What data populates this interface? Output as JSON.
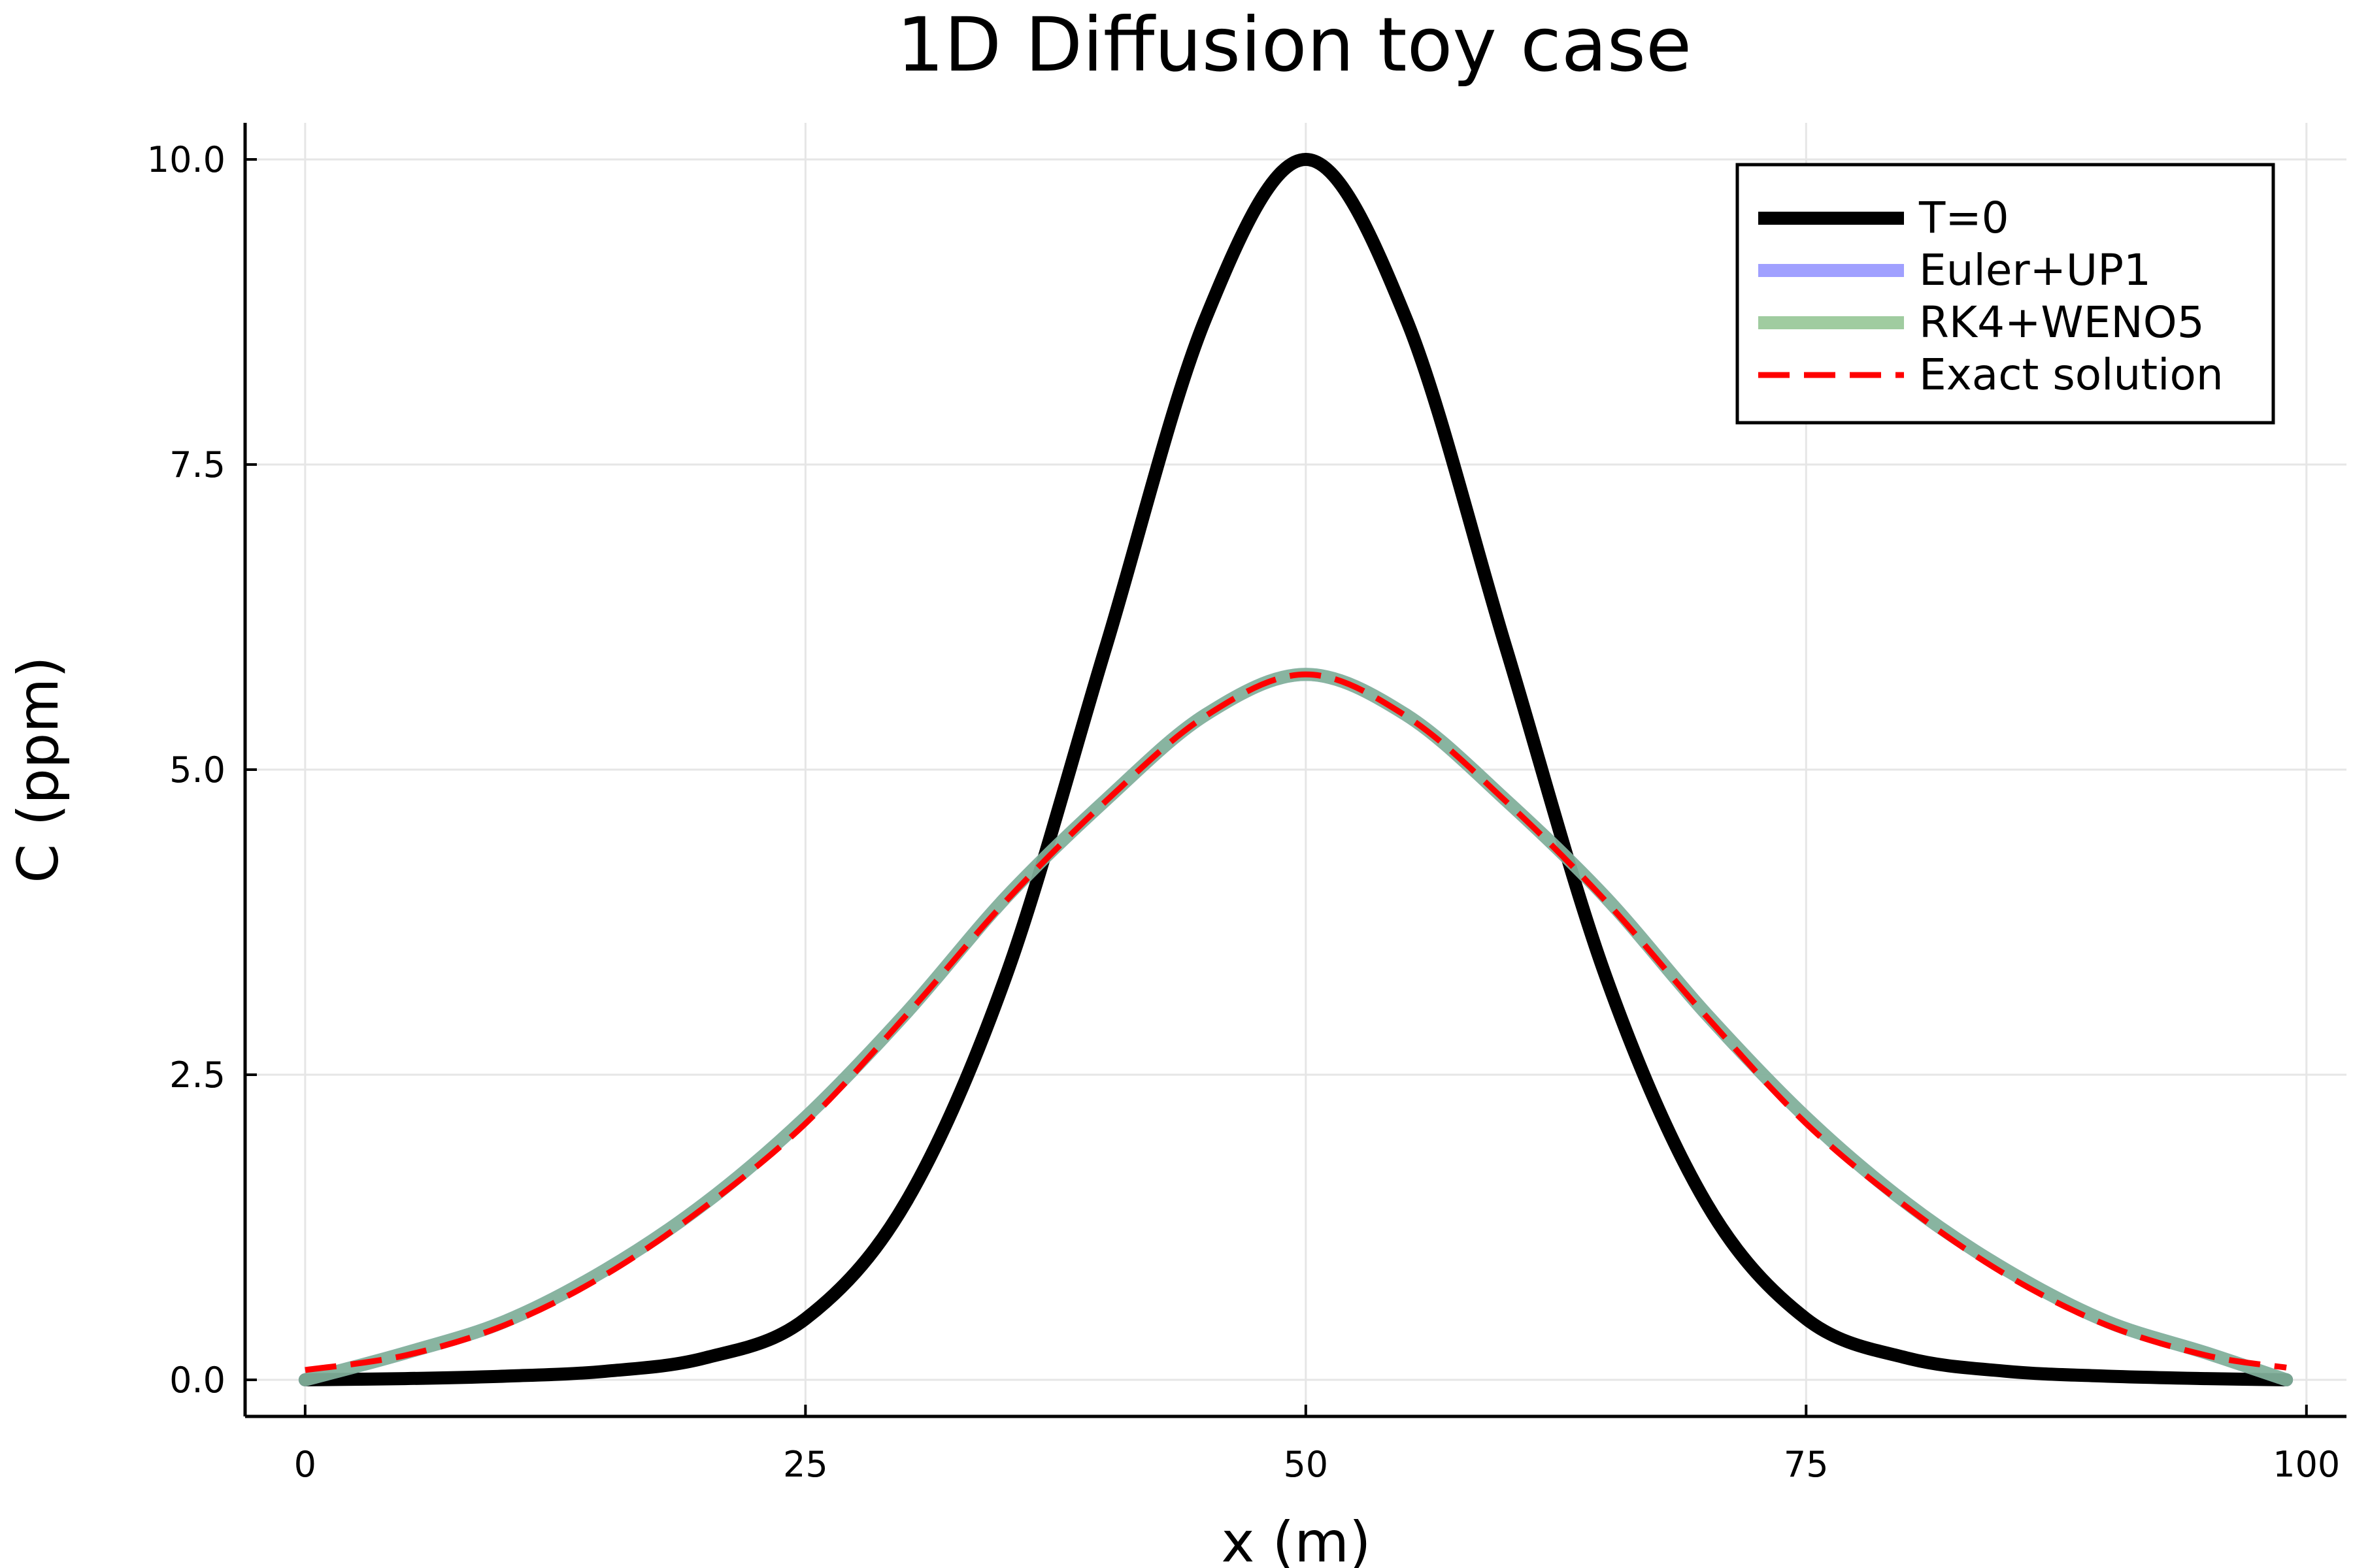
{
  "chart_data": {
    "type": "line",
    "title": "1D Diffusion toy case",
    "xlabel": "x (m)",
    "ylabel": "C (ppm)",
    "xlim": [
      -3,
      102
    ],
    "ylim": [
      -0.3,
      10.3
    ],
    "xticks": [
      0,
      25,
      50,
      75,
      100
    ],
    "xtick_labels": [
      "0",
      "25",
      "50",
      "75",
      "100"
    ],
    "yticks": [
      0,
      2.5,
      5,
      7.5,
      10
    ],
    "ytick_labels": [
      "0.0",
      "2.5",
      "5.0",
      "7.5",
      "10.0"
    ],
    "grid": true,
    "legend_position": "top-right",
    "x": [
      0,
      5,
      10,
      15,
      20,
      25,
      30,
      35,
      40,
      45,
      50,
      55,
      60,
      65,
      70,
      75,
      80,
      85,
      90,
      95,
      99
    ],
    "series": [
      {
        "name": "T=0",
        "color": "#000000",
        "style": "solid",
        "values": [
          0.0,
          0.01,
          0.03,
          0.07,
          0.18,
          0.5,
          1.45,
          3.3,
          6.0,
          8.7,
          10.0,
          8.7,
          6.0,
          3.3,
          1.45,
          0.5,
          0.18,
          0.07,
          0.03,
          0.01,
          0.0
        ]
      },
      {
        "name": "Euler+UP1",
        "color": "#8080ff",
        "style": "solid",
        "values": [
          0.0,
          0.22,
          0.48,
          0.9,
          1.45,
          2.15,
          3.0,
          3.95,
          4.75,
          5.45,
          5.78,
          5.45,
          4.75,
          3.95,
          3.0,
          2.15,
          1.45,
          0.9,
          0.48,
          0.22,
          0.0
        ]
      },
      {
        "name": "RK4+WENO5",
        "color": "#80bb80",
        "style": "solid",
        "values": [
          0.0,
          0.22,
          0.48,
          0.9,
          1.45,
          2.15,
          3.0,
          3.95,
          4.75,
          5.45,
          5.78,
          5.45,
          4.75,
          3.95,
          3.0,
          2.15,
          1.45,
          0.9,
          0.48,
          0.22,
          0.0
        ]
      },
      {
        "name": "Exact solution",
        "color": "#ff0000",
        "style": "dashed",
        "values": [
          0.08,
          0.2,
          0.45,
          0.86,
          1.42,
          2.1,
          2.98,
          3.92,
          4.74,
          5.44,
          5.78,
          5.44,
          4.74,
          3.92,
          2.98,
          2.1,
          1.42,
          0.86,
          0.45,
          0.2,
          0.1
        ]
      }
    ]
  }
}
